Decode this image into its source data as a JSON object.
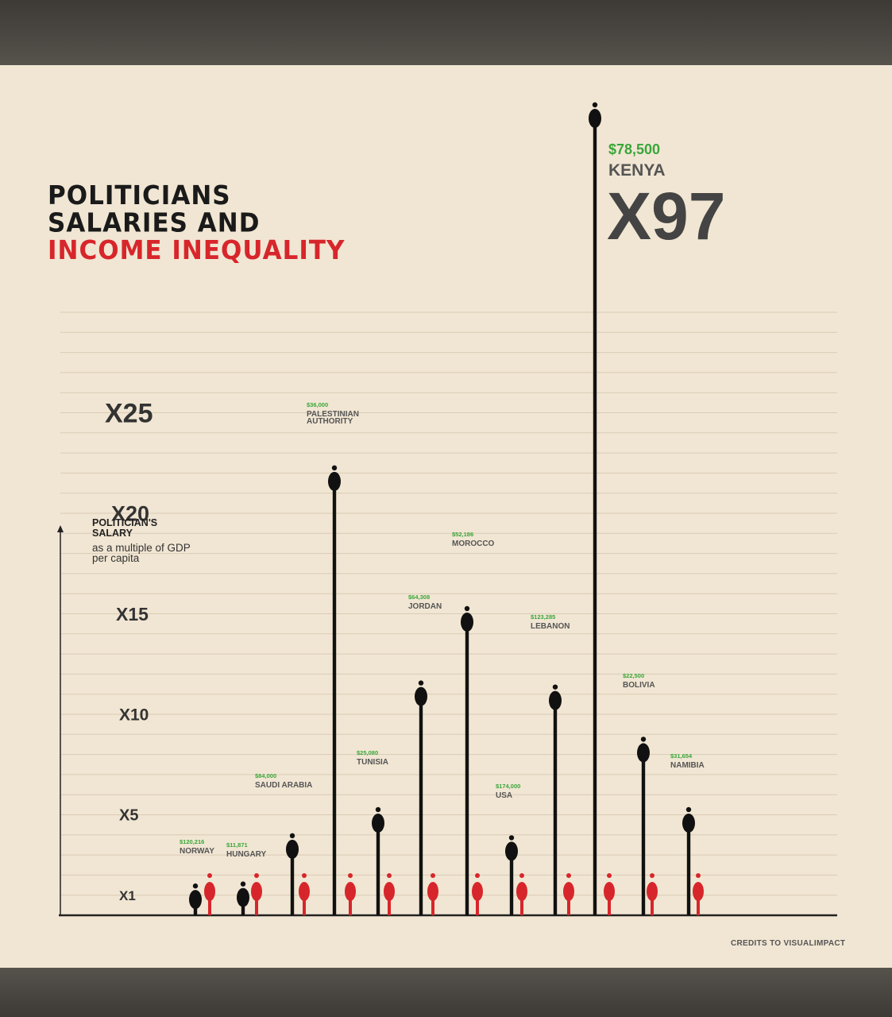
{
  "title": {
    "line1": "POLITICIANS",
    "line2": "SALARIES AND",
    "line3": "INCOME INEQUALITY"
  },
  "axis_label": {
    "line1": "POLITICIAN'S",
    "line2": "SALARY",
    "line3": "as a multiple of GDP",
    "line4": "per capita"
  },
  "credits": "CREDITS TO VISUALIMPACT",
  "colors": {
    "background": "#f1e6d3",
    "politician": "#111111",
    "citizen": "#d7262b",
    "salary_text": "#3aa63a",
    "label_text": "#555555"
  },
  "chart_data": {
    "type": "bar",
    "title": "POLITICIANS SALARIES AND INCOME INEQUALITY",
    "ylabel": "POLITICIAN'S SALARY as a multiple of GDP per capita",
    "y_ticks": [
      "X1",
      "X5",
      "X10",
      "X15",
      "X20",
      "X25"
    ],
    "y_tick_values": [
      1,
      5,
      10,
      15,
      20,
      25
    ],
    "grid": true,
    "categories": [
      "NORWAY",
      "HUNGARY",
      "SAUDI ARABIA",
      "PALESTINIAN AUTHORITY",
      "TUNISIA",
      "JORDAN",
      "MOROCCO",
      "USA",
      "LEBANON",
      "KENYA",
      "BOLIVIA",
      "NAMIBIA"
    ],
    "salaries": [
      "$120,216",
      "$11,871",
      "$84,000",
      "$36,000",
      "$25,080",
      "$64,308",
      "$52,186",
      "$174,000",
      "$123,285",
      "$78,500",
      "$22,500",
      "$31,654"
    ],
    "series": [
      {
        "name": "POLITICIAN'S SALARY",
        "values": [
          1.3,
          1.4,
          3.8,
          22.1,
          5.1,
          11.4,
          15.1,
          3.7,
          11.2,
          97,
          8.6,
          5.1
        ]
      }
    ],
    "highlight": {
      "value_label": "X97",
      "country": "KENYA",
      "salary": "$78,500"
    }
  }
}
